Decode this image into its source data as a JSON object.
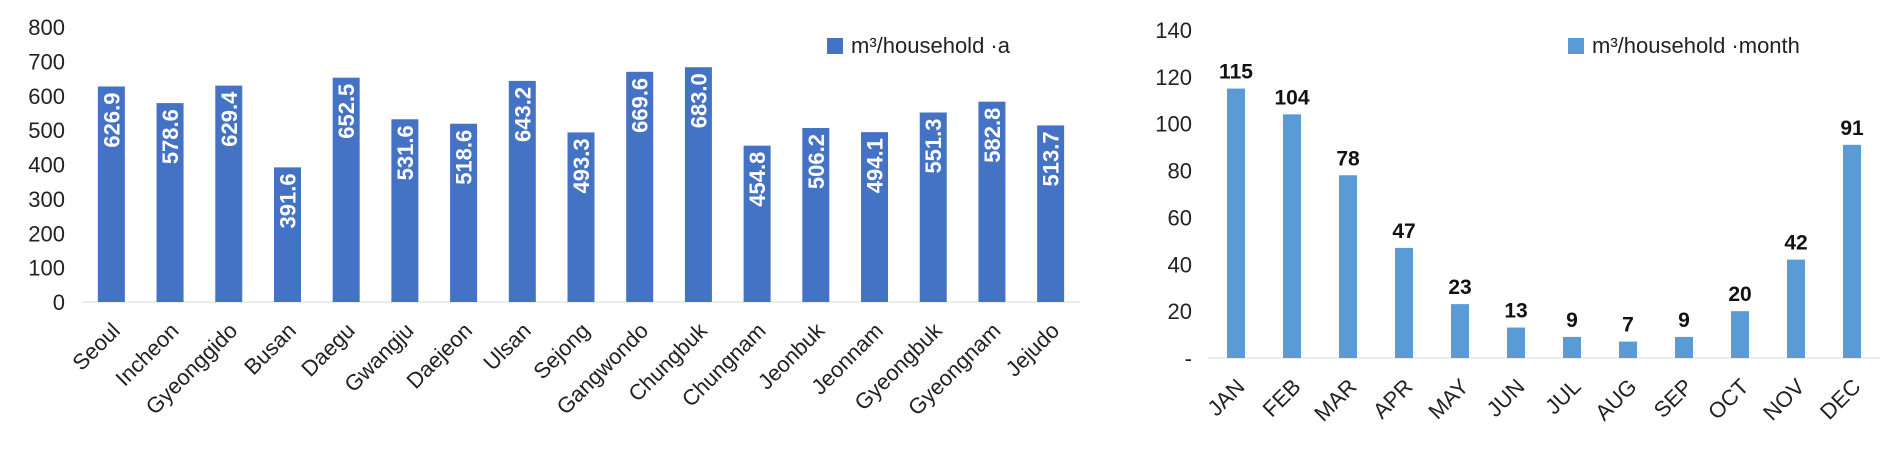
{
  "chart_data": [
    {
      "type": "bar",
      "categories": [
        "Seoul",
        "Incheon",
        "Gyeonggido",
        "Busan",
        "Daegu",
        "Gwangju",
        "Daejeon",
        "Ulsan",
        "Sejong",
        "Gangwondo",
        "Chungbuk",
        "Chungnam",
        "Jeonbuk",
        "Jeonnam",
        "Gyeongbuk",
        "Gyeongnam",
        "Jejudo"
      ],
      "values": [
        626.9,
        578.6,
        629.4,
        391.6,
        652.5,
        531.6,
        518.6,
        643.2,
        493.3,
        669.6,
        683.0,
        454.8,
        506.2,
        494.1,
        551.3,
        582.8,
        513.7
      ],
      "value_labels": [
        "626.9",
        "578.6",
        "629.4",
        "391.6",
        "652.5",
        "531.6",
        "518.6",
        "643.2",
        "493.3",
        "669.6",
        "683.0",
        "454.8",
        "506.2",
        "494.1",
        "551.3",
        "582.8",
        "513.7"
      ],
      "series_name": "m³/household ·a",
      "ylim": [
        0,
        800
      ],
      "yticks": [
        "0",
        "100",
        "200",
        "300",
        "400",
        "500",
        "600",
        "700",
        "800"
      ],
      "ytick_values": [
        0,
        100,
        200,
        300,
        400,
        500,
        600,
        700,
        800
      ],
      "legend_position": "top-right",
      "grid": false,
      "color": "#4472C4"
    },
    {
      "type": "bar",
      "categories": [
        "JAN",
        "FEB",
        "MAR",
        "APR",
        "MAY",
        "JUN",
        "JUL",
        "AUG",
        "SEP",
        "OCT",
        "NOV",
        "DEC"
      ],
      "values": [
        115,
        104,
        78,
        47,
        23,
        13,
        9,
        7,
        9,
        20,
        42,
        91
      ],
      "value_labels": [
        "115",
        "104",
        "78",
        "47",
        "23",
        "13",
        "9",
        "7",
        "9",
        "20",
        "42",
        "91"
      ],
      "series_name": "m³/household ·month",
      "ylim": [
        0,
        140
      ],
      "yticks": [
        "-",
        "20",
        "40",
        "60",
        "80",
        "100",
        "120",
        "140"
      ],
      "ytick_values": [
        0,
        20,
        40,
        60,
        80,
        100,
        120,
        140
      ],
      "legend_position": "top-right",
      "grid": false,
      "color": "#5B9BD5"
    }
  ]
}
